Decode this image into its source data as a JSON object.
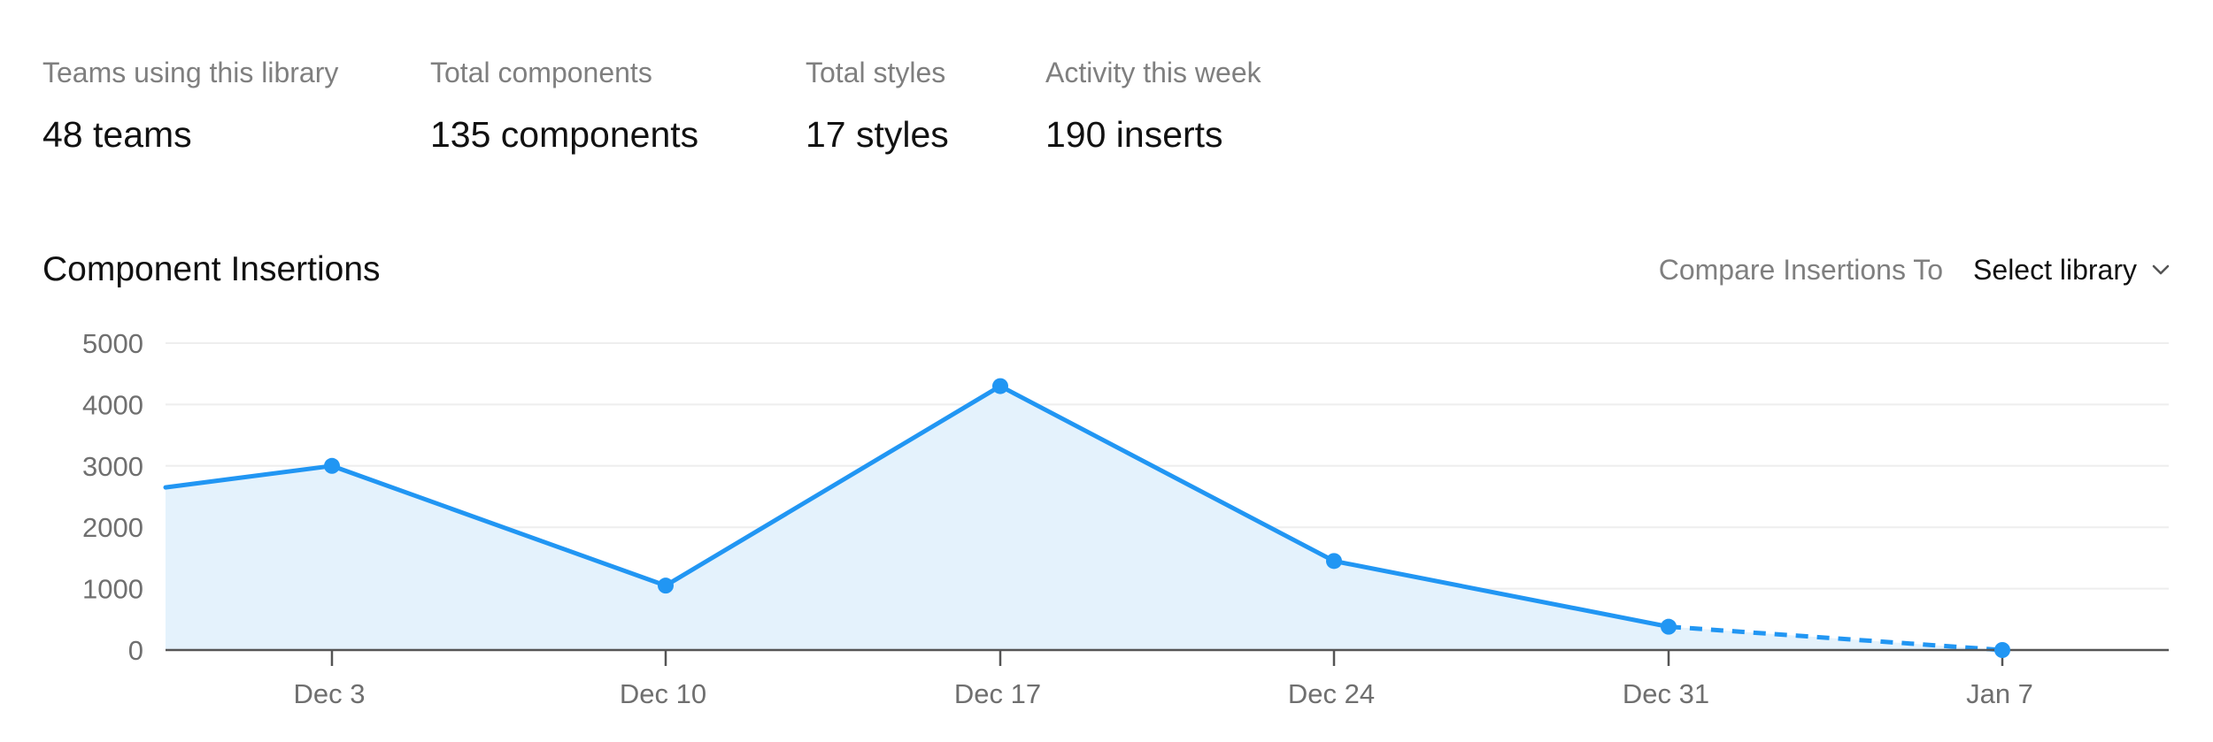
{
  "stats": [
    {
      "label": "Teams using this library",
      "value": "48 teams"
    },
    {
      "label": "Total components",
      "value": "135 components"
    },
    {
      "label": "Total styles",
      "value": "17 styles"
    },
    {
      "label": "Activity this week",
      "value": "190 inserts"
    }
  ],
  "chart_header": {
    "title": "Component Insertions",
    "compare_label": "Compare Insertions To",
    "select_value": "Select library",
    "select_icon": "chevron-down-icon"
  },
  "colors": {
    "line": "#2196f3",
    "area": "#e4f2fc",
    "grid": "#eeeeee",
    "axis": "#555555",
    "muted_text": "#7f7f7f",
    "text": "#111111"
  },
  "chart_data": {
    "type": "area",
    "title": "Component Insertions",
    "xlabel": "",
    "ylabel": "",
    "ylim": [
      0,
      5000
    ],
    "y_ticks": [
      "5000",
      "4000",
      "3000",
      "2000",
      "1000",
      "0"
    ],
    "grid": true,
    "x_tick_labels": [
      "Dec 3",
      "Dec 10",
      "Dec 17",
      "Dec 24",
      "Dec 31",
      "Jan 7"
    ],
    "series": [
      {
        "points": [
          {
            "x": "Dec 3",
            "y": 3000
          },
          {
            "x": "Dec 10",
            "y": 1050
          },
          {
            "x": "Dec 17",
            "y": 4300
          },
          {
            "x": "Dec 24",
            "y": 1450
          },
          {
            "x": "Dec 31",
            "y": 380
          },
          {
            "x": "Jan 7",
            "y": 0
          }
        ],
        "value_before_first_tick": 2650,
        "dashed_last_segment": true
      }
    ]
  }
}
